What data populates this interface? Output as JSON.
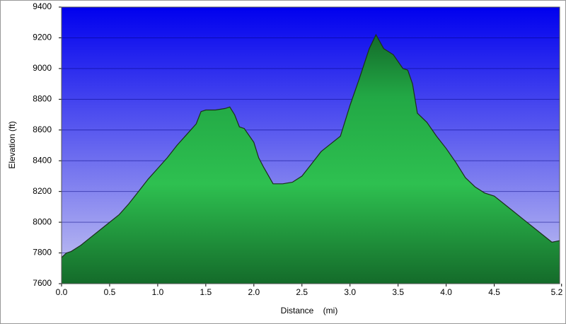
{
  "chart_data": {
    "type": "area",
    "x_label": "Distance    (mi)",
    "y_label": "Elevation (ft)",
    "x": [
      0,
      0.05,
      0.1,
      0.2,
      0.3,
      0.4,
      0.5,
      0.6,
      0.7,
      0.8,
      0.9,
      1.0,
      1.1,
      1.2,
      1.3,
      1.4,
      1.45,
      1.5,
      1.6,
      1.7,
      1.75,
      1.8,
      1.85,
      1.9,
      2.0,
      2.05,
      2.1,
      2.2,
      2.3,
      2.4,
      2.5,
      2.6,
      2.7,
      2.8,
      2.9,
      3.0,
      3.1,
      3.2,
      3.27,
      3.35,
      3.45,
      3.55,
      3.6,
      3.65,
      3.7,
      3.8,
      3.9,
      4.0,
      4.1,
      4.2,
      4.3,
      4.4,
      4.5,
      4.6,
      4.7,
      4.8,
      4.9,
      5.0,
      5.1,
      5.18
    ],
    "values": [
      7770,
      7800,
      7810,
      7850,
      7900,
      7950,
      8000,
      8050,
      8120,
      8200,
      8280,
      8350,
      8420,
      8500,
      8570,
      8640,
      8720,
      8730,
      8730,
      8740,
      8750,
      8700,
      8620,
      8610,
      8520,
      8420,
      8360,
      8250,
      8250,
      8260,
      8300,
      8380,
      8460,
      8510,
      8560,
      8760,
      8940,
      9130,
      9220,
      9130,
      9090,
      9000,
      8990,
      8900,
      8710,
      8650,
      8560,
      8480,
      8390,
      8290,
      8230,
      8190,
      8170,
      8120,
      8070,
      8020,
      7970,
      7920,
      7870,
      7880
    ],
    "line_color": "#1c2e1c",
    "fill_color": "#22a845",
    "xlim": [
      0,
      5.18
    ],
    "xticks": [
      {
        "value": 0,
        "label": "0.0"
      },
      0.5,
      {
        "value": 1,
        "label": "1.0"
      },
      1.5,
      {
        "value": 2,
        "label": "2.0"
      },
      2.5,
      {
        "value": 3,
        "label": "3.0"
      },
      3.5,
      {
        "value": 4,
        "label": "4.0"
      },
      4.5,
      5.2
    ],
    "ylim": [
      7600,
      9400
    ],
    "yticks": [
      7600,
      7800,
      8000,
      8200,
      8400,
      8600,
      8800,
      9000,
      9200,
      9400
    ],
    "grid": true
  }
}
